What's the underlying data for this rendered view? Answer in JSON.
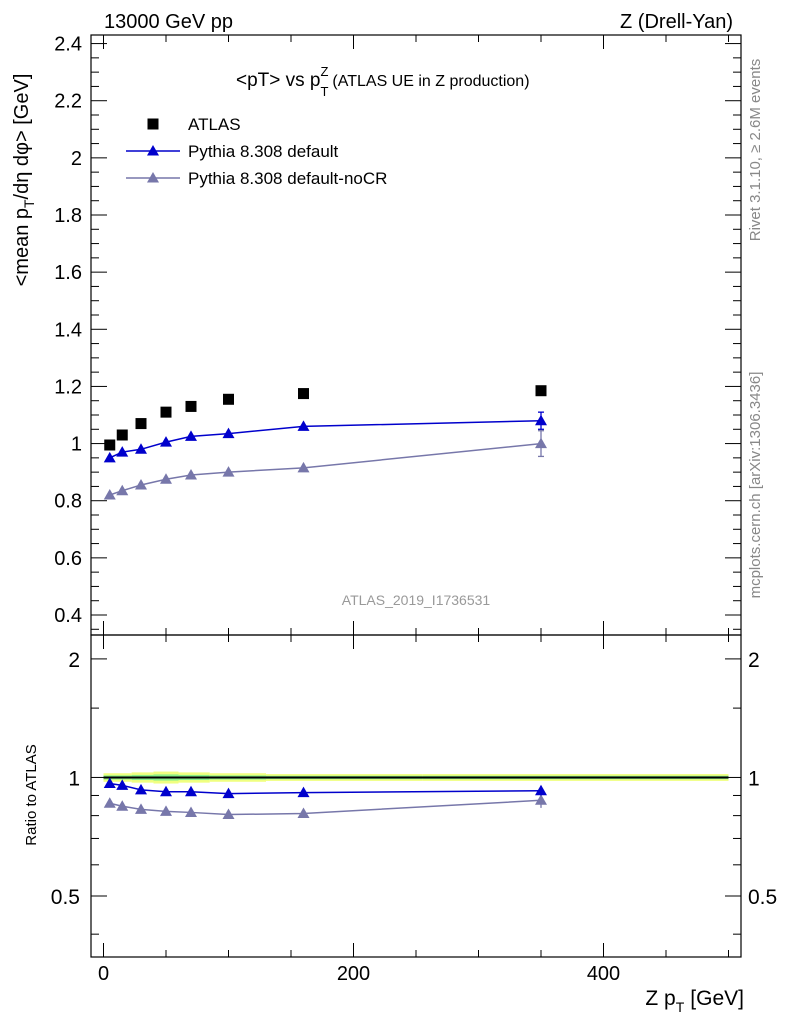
{
  "header": {
    "left": "13000 GeV pp",
    "right": "Z (Drell-Yan)"
  },
  "side_labels": {
    "rivet": "Rivet 3.1.10, ≥ 2.6M events",
    "mcplots": "mcplots.cern.ch [arXiv:1306.3436]"
  },
  "chart_data": {
    "type": "scatter",
    "title_main": "<pT> vs p",
    "title_sup": "Z",
    "title_sub": "T",
    "title_suffix": "(ATLAS UE in Z production)",
    "analysis_id": "ATLAS_2019_I1736531",
    "xlabel_main": "Z p",
    "xlabel_sub": "T",
    "xlabel_unit": "[GeV]",
    "ylabel_parts": [
      "<mean p",
      "T",
      "/dη dφ> [GeV]"
    ],
    "ratio_ylabel": "Ratio to ATLAS",
    "xlim": [
      -10,
      510
    ],
    "ylim": [
      0.33,
      2.43
    ],
    "ratio_ylim": [
      0.35,
      2.3
    ],
    "x_ticks": [
      "0",
      "200",
      "400"
    ],
    "y_ticks": [
      "0.4",
      "0.6",
      "0.8",
      "1",
      "1.2",
      "1.4",
      "1.6",
      "1.8",
      "2",
      "2.2",
      "2.4"
    ],
    "ratio_ticks": [
      "0.5",
      "1",
      "2"
    ],
    "legend_placement": "top-left",
    "colors": {
      "data": "#000000",
      "default": "#0000cc",
      "nocr": "#7777aa",
      "band_outer": "#f0ff80",
      "band_inner": "#88ee88"
    },
    "series": [
      {
        "name": "ATLAS",
        "x": [
          5,
          15,
          30,
          50,
          70,
          100,
          160,
          350
        ],
        "y": [
          0.995,
          1.03,
          1.07,
          1.11,
          1.13,
          1.155,
          1.175,
          1.185
        ]
      },
      {
        "name": "Pythia 8.308 default",
        "x": [
          5,
          15,
          30,
          50,
          70,
          100,
          160,
          350
        ],
        "y": [
          0.95,
          0.97,
          0.98,
          1.005,
          1.025,
          1.035,
          1.06,
          1.08
        ],
        "err": [
          0.01,
          0.01,
          0.01,
          0.01,
          0.01,
          0.01,
          0.01,
          0.03
        ],
        "ratio": [
          0.965,
          0.955,
          0.93,
          0.92,
          0.92,
          0.91,
          0.915,
          0.925
        ]
      },
      {
        "name": "Pythia 8.308 default-noCR",
        "x": [
          5,
          15,
          30,
          50,
          70,
          100,
          160,
          350
        ],
        "y": [
          0.82,
          0.835,
          0.855,
          0.875,
          0.89,
          0.9,
          0.915,
          1.0
        ],
        "err": [
          0.01,
          0.01,
          0.01,
          0.01,
          0.01,
          0.01,
          0.01,
          0.045
        ],
        "ratio": [
          0.86,
          0.845,
          0.83,
          0.82,
          0.815,
          0.805,
          0.81,
          0.875
        ]
      }
    ]
  }
}
